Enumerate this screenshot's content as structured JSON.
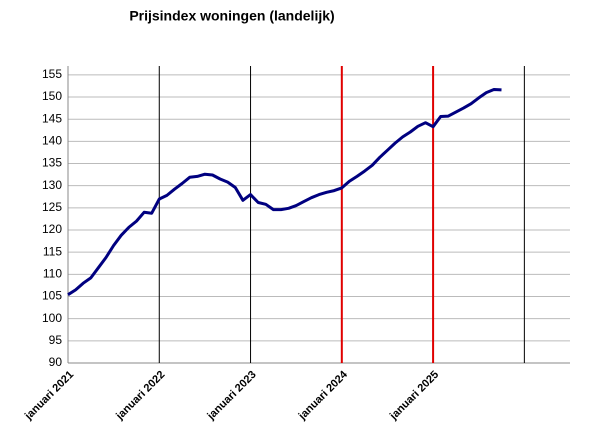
{
  "chart_data": {
    "type": "line",
    "title": "Prijsindex woningen (landelijk)",
    "categories": [
      "januari 2021",
      null,
      null,
      null,
      null,
      null,
      null,
      null,
      null,
      null,
      null,
      null,
      "januari 2022",
      null,
      null,
      null,
      null,
      null,
      null,
      null,
      null,
      null,
      null,
      null,
      "januari 2023",
      null,
      null,
      null,
      null,
      null,
      null,
      null,
      null,
      null,
      null,
      null,
      "januari 2024",
      null,
      null,
      null,
      null,
      null,
      null,
      null,
      null,
      null,
      null,
      null,
      "januari 2025",
      null,
      null,
      null,
      null,
      null,
      null,
      null,
      null,
      null,
      null,
      null,
      null,
      null,
      null,
      null,
      null,
      null,
      null
    ],
    "series": [
      {
        "color": "#000080",
        "values": [
          105.4,
          106.5,
          108,
          109.2,
          111.5,
          113.8,
          116.5,
          118.8,
          120.6,
          122,
          124,
          123.8,
          127,
          127.8,
          129.2,
          130.5,
          131.9,
          132.1,
          132.6,
          132.4,
          131.5,
          130.8,
          129.6,
          126.7,
          128,
          126.2,
          125.8,
          124.6,
          124.6,
          124.9,
          125.5,
          126.4,
          127.3,
          128,
          128.5,
          128.9,
          129.5,
          131,
          132.1,
          133.3,
          134.6,
          136.4,
          138,
          139.6,
          141,
          142.1,
          143.4,
          144.2,
          143.3,
          145.6,
          145.7,
          146.6,
          147.5,
          148.5,
          149.8,
          151,
          151.7,
          151.6,
          null,
          null,
          null,
          null,
          null,
          null,
          null,
          null,
          null
        ]
      }
    ],
    "ylim": [
      90,
      157
    ],
    "yticks": [
      90,
      95,
      100,
      105,
      110,
      115,
      120,
      125,
      130,
      135,
      140,
      145,
      150,
      155
    ],
    "grid": true,
    "vertical_lines": [
      {
        "category": 12,
        "color": "#000000"
      },
      {
        "category": 24,
        "color": "#000000"
      },
      {
        "category": 36,
        "color": "#e00000"
      },
      {
        "category": 48,
        "color": "#e00000"
      },
      {
        "category": 60,
        "color": "#000000"
      }
    ]
  }
}
